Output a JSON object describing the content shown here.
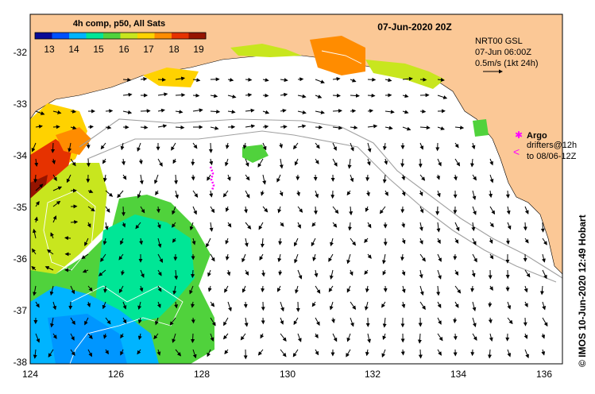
{
  "map": {
    "title_date": "07-Jun-2020 20Z",
    "composite_label": "4h comp, p50, All Sats",
    "colorbar": {
      "ticks": [
        "13",
        "14",
        "15",
        "16",
        "17",
        "18",
        "19"
      ],
      "colors": [
        "#0a0a96",
        "#0050ff",
        "#00b4ff",
        "#00e696",
        "#50d23c",
        "#c8e61e",
        "#ffd200",
        "#ff8c00",
        "#e63200",
        "#961400"
      ]
    },
    "model_info": {
      "line1": "NRT00 GSL",
      "line2": "07-Jun 06:00Z",
      "line3": "0.5m/s (1kt 24h)"
    },
    "argo": {
      "title": "Argo",
      "line1": "drifters@12h",
      "line2": "to 08/06-12Z"
    },
    "credit": "© IMOS 10-Jun-2020 12:49 Hobart",
    "x_ticks": [
      "124",
      "126",
      "128",
      "130",
      "132",
      "134",
      "136"
    ],
    "y_ticks": [
      "-32",
      "-33",
      "-34",
      "-35",
      "-36",
      "-37",
      "-38"
    ],
    "colors": {
      "land": "#fbc896",
      "ocean": "#ffffff",
      "depth_contour": "#a0a0a0",
      "argo": "#ff00ff"
    }
  }
}
